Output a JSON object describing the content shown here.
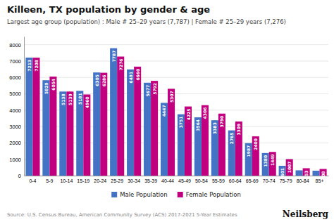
{
  "chart_data": {
    "type": "bar",
    "title": "Killeen, TX population by gender & age",
    "subtitle": "Largest age group (population) : Male # 25–29 years (7,787) | Female # 25–29 years (7,276)",
    "source": "Source: U.S. Census Bureau, American Community Survey (ACS) 2017-2021 5-Year Estimates",
    "annotations": [
      "Neilsberg"
    ],
    "categories": [
      "0-4",
      "5-9",
      "10-14",
      "15-19",
      "20-24",
      "25-29",
      "30-34",
      "35-39",
      "40-44",
      "45-49",
      "50-54",
      "55-59",
      "60-64",
      "65-69",
      "70-74",
      "75-79",
      "80-84",
      "85+"
    ],
    "series": [
      {
        "name": "Male Population",
        "color": "#4472c4",
        "values": [
          7213,
          5829,
          5138,
          5181,
          6305,
          7787,
          6491,
          5677,
          4447,
          3751,
          3564,
          3383,
          2765,
          1987,
          1380,
          601,
          325,
          302
        ],
        "value_labels": [
          "7213",
          "5829",
          "5138",
          "5181",
          "6305",
          "7787",
          "6491",
          "5677",
          "4447",
          "3751",
          "3564",
          "3383",
          "2765",
          "1987",
          "1380",
          "601",
          null,
          null
        ]
      },
      {
        "name": "Female Population",
        "color": "#c0007f",
        "values": [
          7208,
          6054,
          5139,
          4960,
          6286,
          7276,
          6660,
          5792,
          5307,
          4225,
          4306,
          3790,
          3309,
          2400,
          1449,
          1007,
          453,
          408
        ]
      }
    ],
    "ylim": [
      0,
      8500
    ],
    "yticks": [
      0,
      1000,
      2000,
      3000,
      4000,
      5000,
      6000,
      7000,
      8000
    ],
    "grid": true,
    "legend": "bottom",
    "data_labels": true
  }
}
